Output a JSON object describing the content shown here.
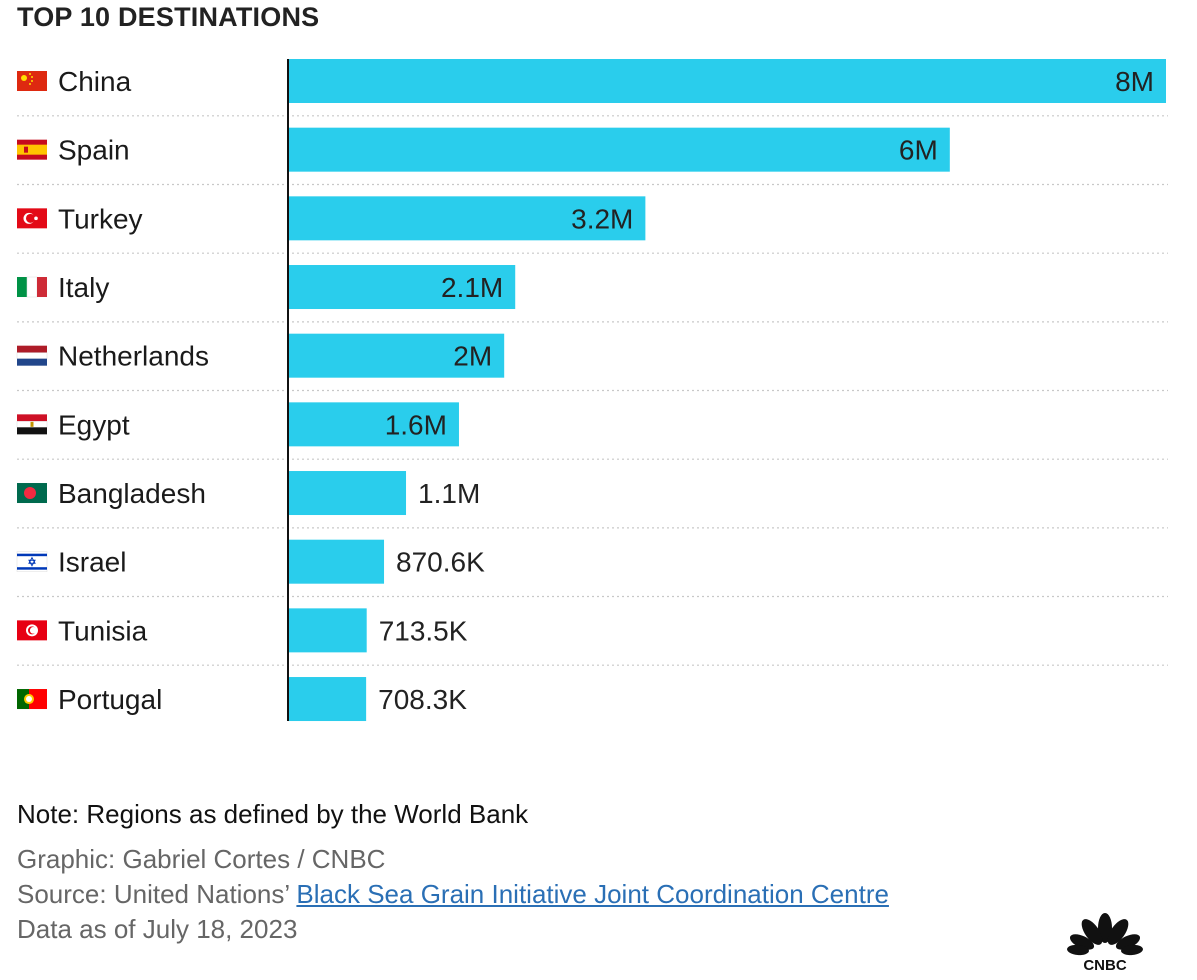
{
  "title": "TOP 10 DESTINATIONS",
  "colors": {
    "bar": "#2ACDEC",
    "axis": "#111111",
    "grid": "#c8c8c8"
  },
  "chart_data": {
    "type": "bar",
    "orientation": "horizontal",
    "categories": [
      "China",
      "Spain",
      "Turkey",
      "Italy",
      "Netherlands",
      "Egypt",
      "Bangladesh",
      "Israel",
      "Tunisia",
      "Portugal"
    ],
    "values": [
      7960000,
      6000000,
      3240000,
      2060000,
      1960000,
      1550000,
      1070000,
      870600,
      713500,
      708300
    ],
    "value_labels": [
      "8M",
      "6M",
      "3.2M",
      "2.1M",
      "2M",
      "1.6M",
      "1.1M",
      "870.6K",
      "713.5K",
      "708.3K"
    ],
    "flag_icons": [
      "china-flag-icon",
      "spain-flag-icon",
      "turkey-flag-icon",
      "italy-flag-icon",
      "netherlands-flag-icon",
      "egypt-flag-icon",
      "bangladesh-flag-icon",
      "israel-flag-icon",
      "tunisia-flag-icon",
      "portugal-flag-icon"
    ],
    "xlim": [
      0,
      7960000
    ],
    "grid": "dotted row separators"
  },
  "footer": {
    "note": "Note: Regions as defined by the World Bank",
    "graphic": "Graphic: Gabriel Cortes / CNBC",
    "source_prefix": "Source: United Nations’ ",
    "source_link": "Black Sea Grain Initiative Joint Coordination Centre",
    "date": "Data as of July 18, 2023"
  },
  "logo": {
    "icon": "cnbc-peacock-logo",
    "text": "CNBC"
  }
}
